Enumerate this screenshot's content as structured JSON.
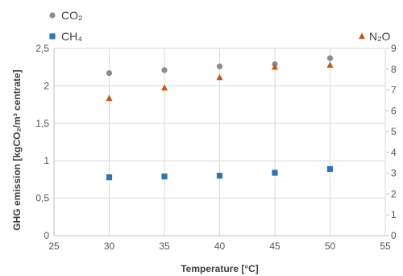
{
  "chart_data": {
    "type": "scatter",
    "xlabel": "Temperature [°C]",
    "ylabel": "GHG emission [kgCO₂/m³ centrate]",
    "xlim": [
      25,
      55
    ],
    "ylim": [
      0,
      2.5
    ],
    "y2lim": [
      0,
      9
    ],
    "x_ticks": [
      "25",
      "30",
      "35",
      "40",
      "45",
      "50",
      "55"
    ],
    "y_ticks": [
      "0",
      "0,5",
      "1",
      "1,5",
      "2",
      "2,5"
    ],
    "y2_ticks": [
      "0",
      "1",
      "2",
      "3",
      "4",
      "5",
      "6",
      "7",
      "8",
      "9"
    ],
    "grid": true,
    "legend": [
      {
        "name": "CO₂",
        "marker": "circle",
        "color": "#8c8c8c",
        "placement": "top-left"
      },
      {
        "name": "CH₄",
        "marker": "square",
        "color": "#2e75b6",
        "placement": "top-left"
      },
      {
        "name": "N₂O",
        "marker": "triangle",
        "color": "#c55a11",
        "placement": "top-right"
      }
    ],
    "series": [
      {
        "name": "CO₂",
        "axis": "left",
        "color": "#8c8c8c",
        "marker": "circle",
        "x": [
          30,
          35,
          40,
          45,
          50
        ],
        "y": [
          2.17,
          2.21,
          2.26,
          2.29,
          2.37
        ]
      },
      {
        "name": "CH₄",
        "axis": "left",
        "color": "#2e75b6",
        "marker": "square",
        "x": [
          30,
          35,
          40,
          45,
          50
        ],
        "y": [
          0.78,
          0.79,
          0.8,
          0.84,
          0.89
        ]
      },
      {
        "name": "N₂O",
        "axis": "right",
        "color": "#c55a11",
        "marker": "triangle",
        "x": [
          30,
          35,
          40,
          45,
          50
        ],
        "y": [
          6.6,
          7.1,
          7.6,
          8.1,
          8.2
        ]
      }
    ]
  }
}
